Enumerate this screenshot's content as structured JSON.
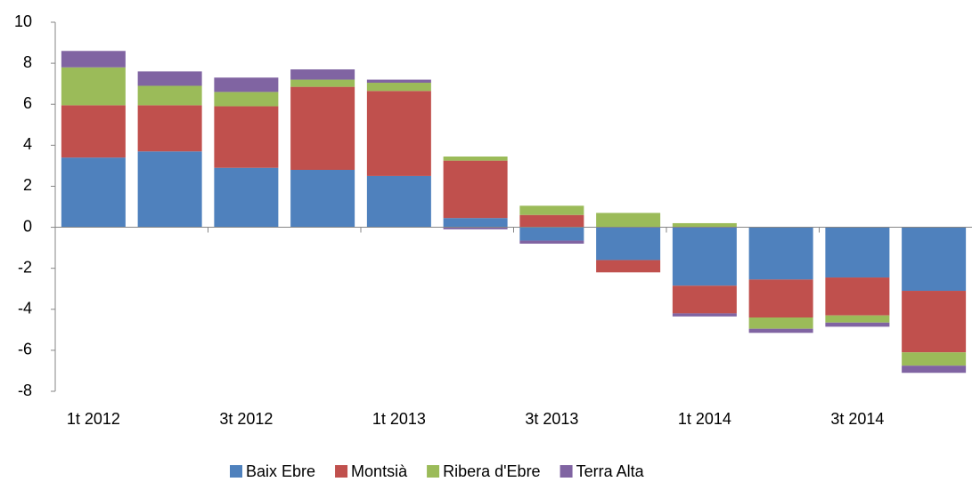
{
  "chart_data": {
    "type": "stacked_bar",
    "categories": [
      "1t 2012",
      null,
      "3t 2012",
      null,
      "1t 2013",
      null,
      "3t 2013",
      null,
      "1t 2014",
      null,
      "3t 2014",
      null
    ],
    "series": [
      {
        "name": "Baix Ebre",
        "color": "#4f81bd",
        "values": [
          3.4,
          3.7,
          2.9,
          2.8,
          2.5,
          0.45,
          -0.65,
          -1.6,
          -2.85,
          -2.55,
          -2.45,
          -3.1
        ]
      },
      {
        "name": "Montsià",
        "color": "#c0504d",
        "values": [
          2.55,
          2.25,
          3.0,
          4.05,
          4.15,
          2.8,
          0.6,
          -0.6,
          -1.35,
          -1.85,
          -1.85,
          -3.0
        ]
      },
      {
        "name": "Ribera d'Ebre",
        "color": "#9bbb59",
        "values": [
          1.85,
          0.95,
          0.7,
          0.35,
          0.4,
          0.2,
          0.45,
          0.7,
          0.2,
          -0.55,
          -0.35,
          -0.65
        ]
      },
      {
        "name": "Terra Alta",
        "color": "#8064a2",
        "values": [
          0.8,
          0.7,
          0.7,
          0.5,
          0.15,
          -0.1,
          -0.15,
          0,
          -0.15,
          -0.2,
          -0.2,
          -0.35
        ]
      }
    ],
    "ylim": [
      -8,
      10
    ],
    "yticks": [
      -8,
      -6,
      -4,
      -2,
      0,
      2,
      4,
      6,
      8,
      10
    ],
    "grid": false,
    "legend": "bottom"
  }
}
